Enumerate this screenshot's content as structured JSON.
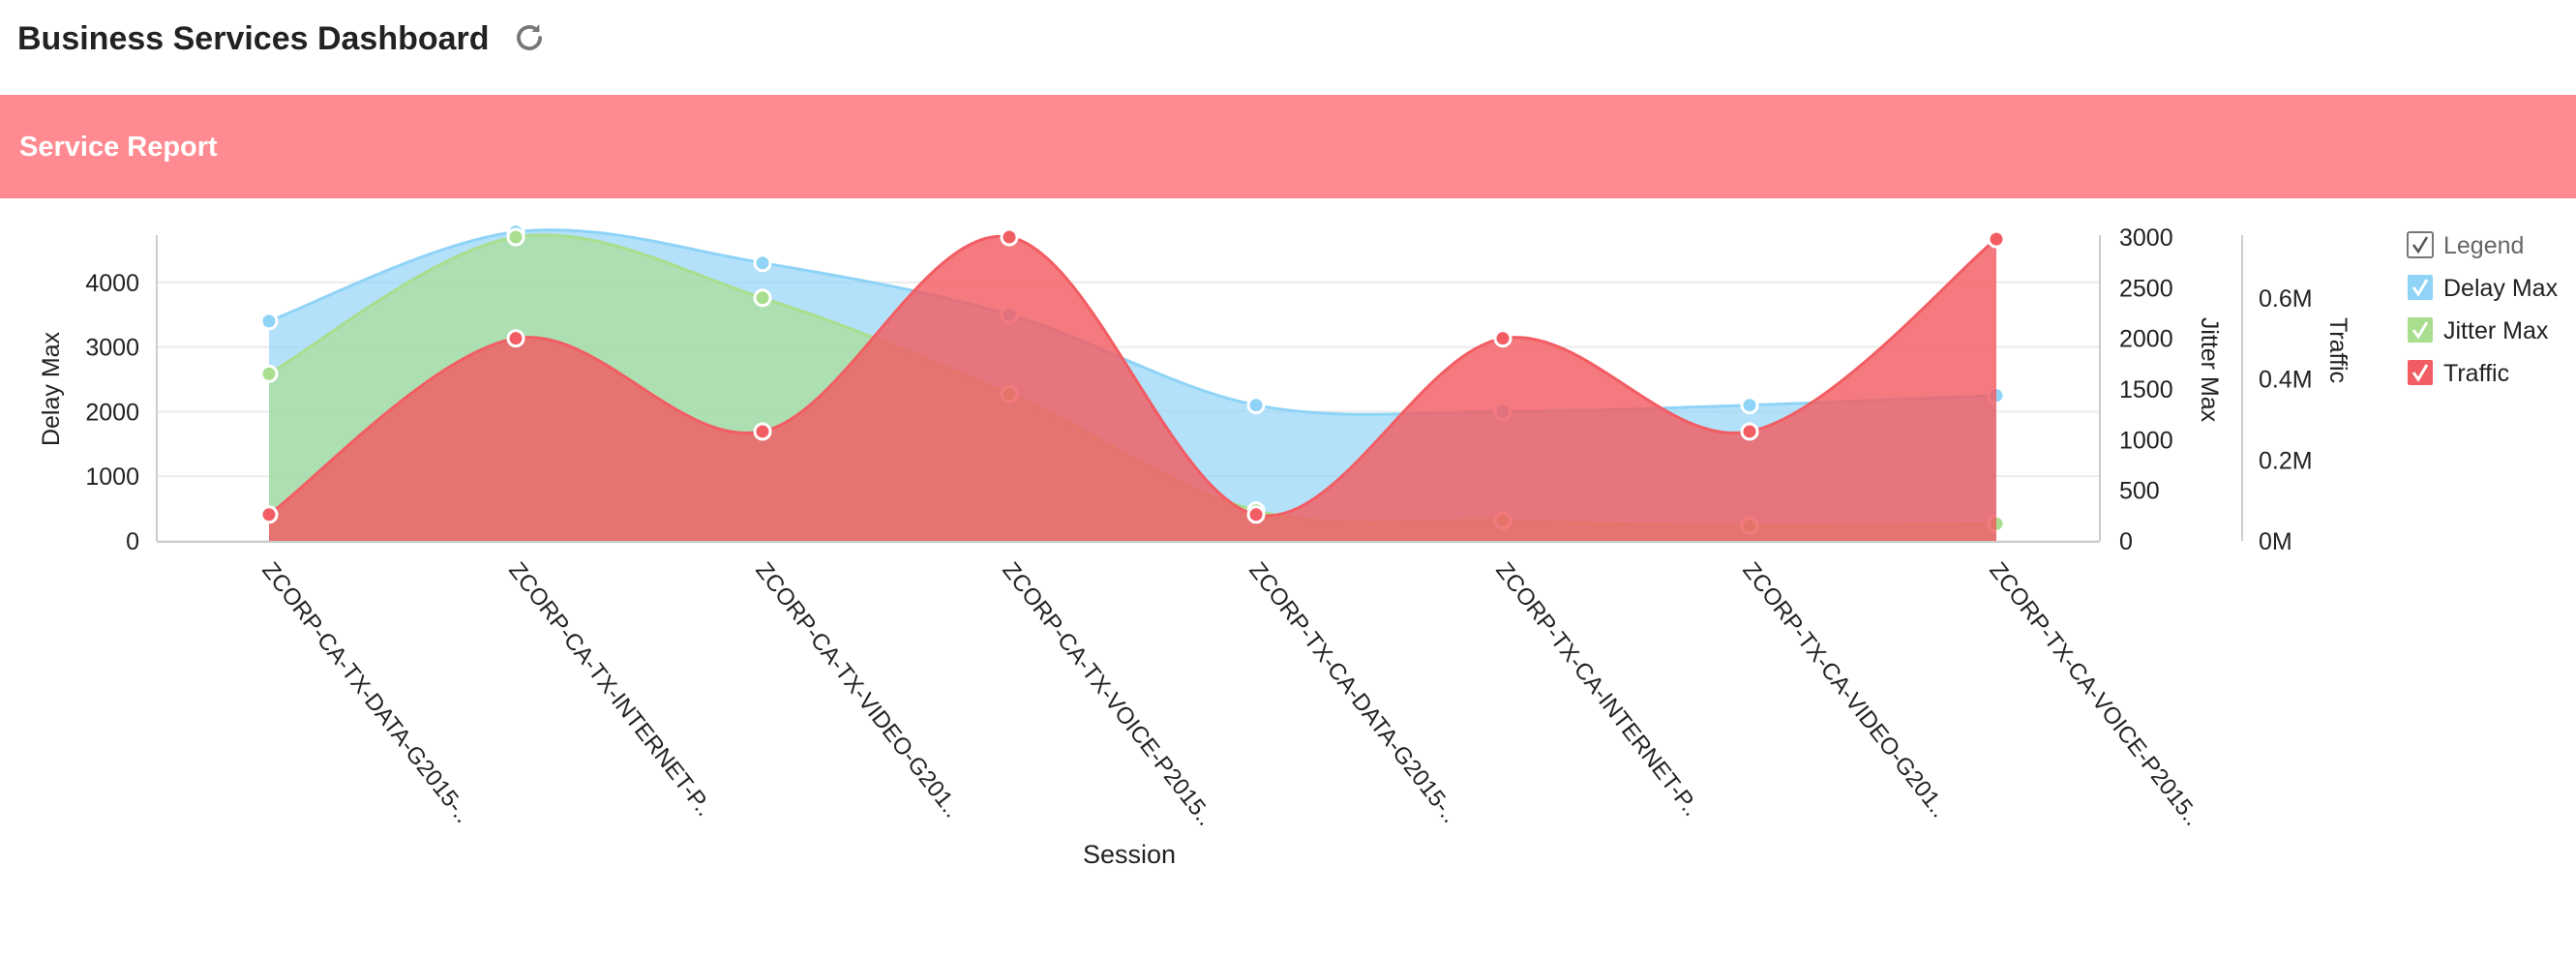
{
  "page": {
    "title": "Business Services Dashboard",
    "refresh_icon": "refresh-icon"
  },
  "panel": {
    "title": "Service Report",
    "band_color": "#ff8a92"
  },
  "chart_data": {
    "type": "area",
    "x_title": "Session",
    "categories": [
      "ZCORP-CA-TX-DATA-G2015-..",
      "ZCORP-CA-TX-INTERNET-P..",
      "ZCORP-CA-TX-VIDEO-G201..",
      "ZCORP-CA-TX-VOICE-P2015..",
      "ZCORP-TX-CA-DATA-G2015-..",
      "ZCORP-TX-CA-INTERNET-P..",
      "ZCORP-TX-CA-VIDEO-G201..",
      "ZCORP-TX-CA-VOICE-P2015.."
    ],
    "axes": [
      {
        "id": "delay",
        "title": "Delay Max",
        "position": "left",
        "min": 0,
        "max": 4700,
        "ticks": [
          "0",
          "1000",
          "2000",
          "3000",
          "4000"
        ],
        "tick_values": [
          0,
          1000,
          2000,
          3000,
          4000
        ],
        "grid": true
      },
      {
        "id": "jitter",
        "title": "Jitter Max",
        "position": "right",
        "min": 0,
        "max": 3000,
        "ticks": [
          "0",
          "500",
          "1000",
          "1500",
          "2000",
          "2500",
          "3000"
        ],
        "tick_values": [
          0,
          500,
          1000,
          1500,
          2000,
          2500,
          3000
        ]
      },
      {
        "id": "traffic",
        "title": "Traffic",
        "position": "right-outer",
        "min": 0,
        "max": 0.75,
        "ticks": [
          "0M",
          "0.2M",
          "0.4M",
          "0.6M"
        ],
        "tick_values": [
          0,
          0.2,
          0.4,
          0.6
        ]
      }
    ],
    "series": [
      {
        "name": "Delay Max",
        "axis": "delay",
        "color": "#8fd3f7",
        "values": [
          3400,
          4780,
          4300,
          3500,
          2100,
          2000,
          2100,
          2250
        ]
      },
      {
        "name": "Jitter Max",
        "axis": "jitter",
        "color": "#a8de8d",
        "values": [
          1650,
          3000,
          2400,
          1450,
          300,
          200,
          150,
          170
        ]
      },
      {
        "name": "Traffic",
        "axis": "traffic",
        "color": "#f25d63",
        "values": [
          0.065,
          0.5,
          0.27,
          0.75,
          0.065,
          0.5,
          0.27,
          0.745
        ]
      }
    ],
    "legend": {
      "title": "Legend",
      "position": "top-right"
    },
    "grid": true
  }
}
